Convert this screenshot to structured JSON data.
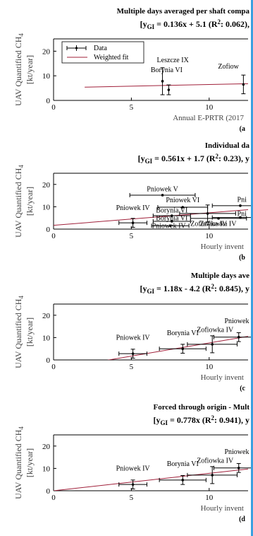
{
  "chart_data": [
    {
      "type": "scatter",
      "panel_letter": "(a",
      "title_line1": "Multiple days averaged per shaft compa",
      "title_line2": "[y",
      "title_sub": "GI",
      "title_rest": " = 0.136x + 5.1 (R",
      "title_sup": "2",
      "title_end": ": 0.062), ",
      "xlabel": "Annual E-PRTR (2017",
      "ylabel_line1": "UAV Quantified CH",
      "ylabel_sub": "4",
      "ylabel_line2": "[kt/year]",
      "xlim": [
        0,
        12.5
      ],
      "ylim": [
        0,
        25
      ],
      "xticks": [
        "0",
        "5",
        "10"
      ],
      "yticks": [
        "0",
        "10",
        "20"
      ],
      "legend": {
        "data_label": "Data",
        "fit_label": "Weighted fit",
        "placement": "top-left"
      },
      "fit": {
        "slope": 0.136,
        "intercept": 5.1,
        "x_range": [
          2,
          12.5
        ]
      },
      "points": [
        {
          "label": "Leszcze IX",
          "x": 7.0,
          "y": 7.8,
          "yerr": 5.5,
          "xerr": 0
        },
        {
          "label": "Borynia VI",
          "x": 7.4,
          "y": 4.3,
          "yerr": 2.0,
          "xerr": 0
        },
        {
          "label": "Zofiow",
          "x": 12.2,
          "y": 6.5,
          "yerr": 3.8,
          "xerr": 0
        }
      ]
    },
    {
      "type": "scatter",
      "panel_letter": "(b",
      "title_line1": "Individual da",
      "title_line2": "[y",
      "title_sub": "GI",
      "title_rest": " = 0.561x + 1.7 (R",
      "title_sup": "2",
      "title_end": ": 0.23), y",
      "xlabel": "Hourly invent",
      "ylabel_line1": "UAV Quantified CH",
      "ylabel_sub": "4",
      "ylabel_line2": "[kt/year]",
      "xlim": [
        0,
        12.5
      ],
      "ylim": [
        0,
        25
      ],
      "xticks": [
        "0",
        "5",
        "10"
      ],
      "yticks": [
        "0",
        "10",
        "20"
      ],
      "fit": {
        "slope": 0.561,
        "intercept": 1.7,
        "x_range": [
          0,
          12.5
        ]
      },
      "points": [
        {
          "label": "Pniowek IV",
          "x": 5.1,
          "y": 2.8,
          "yerr": 2.0,
          "xerr": 0.9
        },
        {
          "label": "Pniowek V",
          "x": 7.0,
          "y": 15.2,
          "yerr": 0,
          "xerr": 2.1
        },
        {
          "label": "Pniowek VI",
          "x": 8.3,
          "y": 9.8,
          "yerr": 0,
          "xerr": 1.6
        },
        {
          "label": "Borynia VI",
          "x": 7.6,
          "y": 6.0,
          "yerr": 0,
          "xerr": 1.2
        },
        {
          "label": "Borynia VI",
          "x": 7.6,
          "y": 3.5,
          "yerr": 0,
          "xerr": 1.2
        },
        {
          "label": "Pniowek IV",
          "x": 7.5,
          "y": 1.5,
          "yerr": 0,
          "xerr": 1.2
        },
        {
          "label": "Zofiowka IV",
          "x": 9.9,
          "y": 7.0,
          "yerr": 3.8,
          "xerr": 1.8
        },
        {
          "label": "Zofiowka IV",
          "x": 10.6,
          "y": 4.8,
          "yerr": 0,
          "xerr": 1.8
        },
        {
          "label": "Pni",
          "x": 12.0,
          "y": 10.5,
          "yerr": 0,
          "xerr": 1.8
        },
        {
          "label": "Pni",
          "x": 12.0,
          "y": 5.2,
          "yerr": 0,
          "xerr": 1.8
        }
      ]
    },
    {
      "type": "scatter",
      "panel_letter": "(c",
      "title_line1": "Multiple days ave",
      "title_line2": "[y",
      "title_sub": "GI",
      "title_rest": " = 1.18x - 4.2 (R",
      "title_sup": "2",
      "title_end": ": 0.845), y",
      "xlabel": "Hourly invent",
      "ylabel_line1": "UAV Quantified CH",
      "ylabel_sub": "4",
      "ylabel_line2": "[kt/year]",
      "xlim": [
        0,
        12.5
      ],
      "ylim": [
        0,
        25
      ],
      "xticks": [
        "0",
        "5",
        "10"
      ],
      "yticks": [
        "0",
        "10",
        "20"
      ],
      "fit": {
        "slope": 1.18,
        "intercept": -4.2,
        "x_range": [
          0,
          12.5
        ]
      },
      "points": [
        {
          "label": "Pniowek IV",
          "x": 5.1,
          "y": 2.8,
          "yerr": 2.0,
          "xerr": 0.9
        },
        {
          "label": "Borynia VI",
          "x": 8.3,
          "y": 5.0,
          "yerr": 2.0,
          "xerr": 1.5
        },
        {
          "label": "Zofiowka IV",
          "x": 10.2,
          "y": 7.0,
          "yerr": 3.8,
          "xerr": 1.6
        },
        {
          "label": "Pniowek V",
          "x": 11.9,
          "y": 10.2,
          "yerr": 2.0,
          "xerr": 1.6
        }
      ]
    },
    {
      "type": "scatter",
      "panel_letter": "(d",
      "title_line1": "Forced through origin - Mult",
      "title_line2": "[y",
      "title_sub": "GI",
      "title_rest": " = 0.778x (R",
      "title_sup": "2",
      "title_end": ": 0.941), y",
      "xlabel": "Hourly invent",
      "ylabel_line1": "UAV Quantified CH",
      "ylabel_sub": "4",
      "ylabel_line2": "[kt/year]",
      "xlim": [
        0,
        12.5
      ],
      "ylim": [
        0,
        25
      ],
      "xticks": [
        "0",
        "5",
        "10"
      ],
      "yticks": [
        "0",
        "10",
        "20"
      ],
      "fit": {
        "slope": 0.778,
        "intercept": 0,
        "x_range": [
          0,
          12.5
        ]
      },
      "points": [
        {
          "label": "Pniowek IV",
          "x": 5.1,
          "y": 2.8,
          "yerr": 2.0,
          "xerr": 0.9
        },
        {
          "label": "Borynia VI",
          "x": 8.3,
          "y": 4.8,
          "yerr": 2.0,
          "xerr": 1.5
        },
        {
          "label": "Zofiowka IV",
          "x": 10.2,
          "y": 7.0,
          "yerr": 3.8,
          "xerr": 1.6
        },
        {
          "label": "Pniowek V",
          "x": 11.9,
          "y": 10.2,
          "yerr": 2.0,
          "xerr": 1.6
        }
      ]
    }
  ],
  "colors": {
    "fit_line": "#a0203a",
    "data": "#000000",
    "axis": "#000000",
    "border": "#3aa0e0"
  }
}
